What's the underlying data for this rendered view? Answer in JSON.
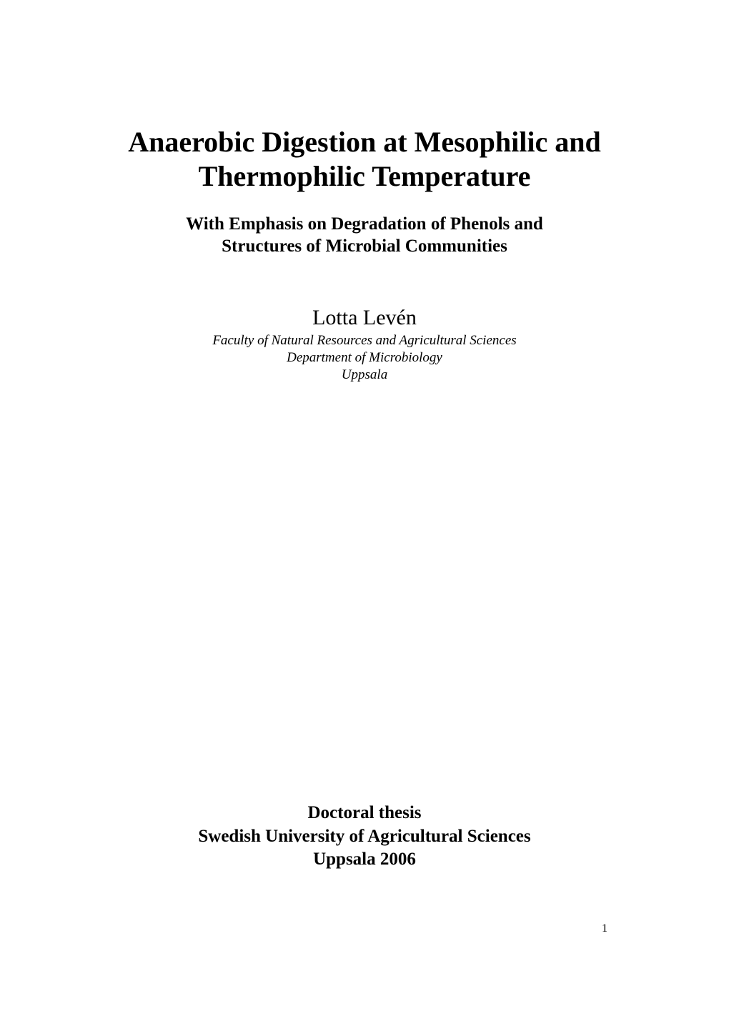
{
  "document": {
    "type": "thesis-title-page",
    "background_color": "#ffffff",
    "text_color": "#000000",
    "font_family": "Times New Roman",
    "title": {
      "line1": "Anaerobic Digestion at Mesophilic and",
      "line2": "Thermophilic Temperature",
      "fontsize_pt": 30,
      "weight": "bold"
    },
    "subtitle": {
      "line1": "With Emphasis on Degradation of Phenols and",
      "line2": "Structures of Microbial Communities",
      "fontsize_pt": 19,
      "weight": "bold"
    },
    "author": {
      "name": "Lotta Levén",
      "fontsize_pt": 22,
      "weight": "normal"
    },
    "affiliation": {
      "line1": "Faculty of Natural Resources and Agricultural Sciences",
      "line2": "Department of Microbiology",
      "line3": "Uppsala",
      "fontsize_pt": 14,
      "style": "italic"
    },
    "footer": {
      "line1": "Doctoral thesis",
      "line2": "Swedish University of Agricultural Sciences",
      "line3": "Uppsala 2006",
      "fontsize_pt": 19,
      "weight": "bold"
    },
    "page_number": "1"
  }
}
